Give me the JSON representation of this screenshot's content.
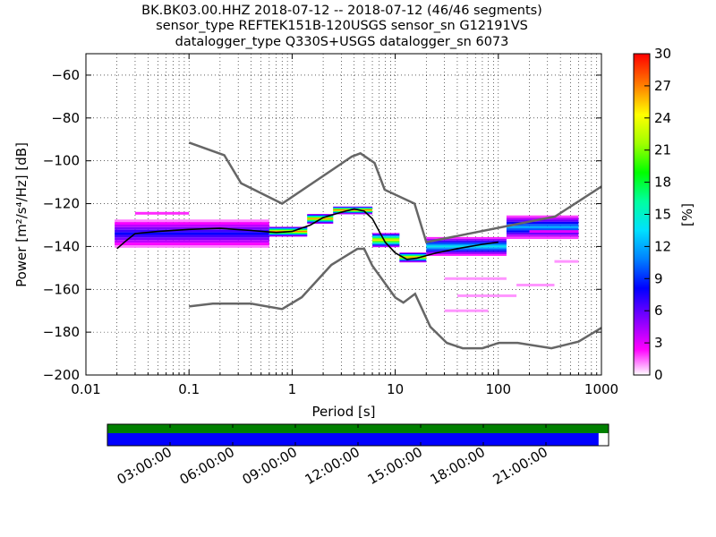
{
  "chart_data": {
    "type": "heatmap",
    "title_lines": [
      "BK.BK03.00.HHZ   2018-07-12 -- 2018-07-12  (46/46 segments)",
      "sensor_type REFTEK151B-120USGS sensor_sn G12191VS",
      "datalogger_type Q330S+USGS datalogger_sn 6073"
    ],
    "xlabel": "Period [s]",
    "ylabel": "Power [m²/s⁴/Hz] [dB]",
    "x_scale": "log",
    "xlim": [
      0.01,
      1000
    ],
    "ylim": [
      -200,
      -50
    ],
    "x_ticks": [
      {
        "value": 0.01,
        "label": "0.01"
      },
      {
        "value": 0.1,
        "label": "0.1"
      },
      {
        "value": 1,
        "label": "1"
      },
      {
        "value": 10,
        "label": "10"
      },
      {
        "value": 100,
        "label": "100"
      },
      {
        "value": 1000,
        "label": "1000"
      }
    ],
    "y_ticks": [
      {
        "value": -60,
        "label": "−60"
      },
      {
        "value": -80,
        "label": "−80"
      },
      {
        "value": -100,
        "label": "−100"
      },
      {
        "value": -120,
        "label": "−120"
      },
      {
        "value": -140,
        "label": "−140"
      },
      {
        "value": -160,
        "label": "−160"
      },
      {
        "value": -180,
        "label": "−180"
      },
      {
        "value": -200,
        "label": "−200"
      }
    ],
    "grid": "dotted",
    "colorbar": {
      "label": "[%]",
      "min": 0,
      "max": 30,
      "ticks": [
        "0",
        "3",
        "6",
        "9",
        "12",
        "15",
        "18",
        "21",
        "24",
        "27",
        "30"
      ]
    },
    "series": [
      {
        "name": "NHNM",
        "color": "#666666",
        "points": [
          [
            0.1,
            -91.5
          ],
          [
            0.22,
            -97.4
          ],
          [
            0.32,
            -110.5
          ],
          [
            0.8,
            -120
          ],
          [
            3.8,
            -98
          ],
          [
            4.6,
            -96.5
          ],
          [
            6.3,
            -101
          ],
          [
            7.9,
            -113.5
          ],
          [
            15.4,
            -120
          ],
          [
            20,
            -138
          ],
          [
            354.8,
            -126
          ],
          [
            1000,
            -112
          ]
        ]
      },
      {
        "name": "NLNM",
        "color": "#666666",
        "points": [
          [
            0.1,
            -168
          ],
          [
            0.17,
            -166.7
          ],
          [
            0.4,
            -166.7
          ],
          [
            0.8,
            -169.2
          ],
          [
            1.24,
            -163.7
          ],
          [
            2.4,
            -148.6
          ],
          [
            4.3,
            -141.1
          ],
          [
            5,
            -141.1
          ],
          [
            6,
            -149
          ],
          [
            10,
            -163.8
          ],
          [
            12,
            -166.2
          ],
          [
            15.6,
            -162.1
          ],
          [
            21.9,
            -177.5
          ],
          [
            31.6,
            -185
          ],
          [
            45,
            -187.5
          ],
          [
            70,
            -187.5
          ],
          [
            101,
            -185
          ],
          [
            154,
            -185
          ],
          [
            328,
            -187.5
          ],
          [
            600,
            -184.4
          ],
          [
            1000,
            -178
          ]
        ]
      },
      {
        "name": "mode",
        "color": "#000000",
        "points": [
          [
            0.02,
            -141
          ],
          [
            0.025,
            -137
          ],
          [
            0.03,
            -134
          ],
          [
            0.05,
            -133
          ],
          [
            0.1,
            -132
          ],
          [
            0.2,
            -131.5
          ],
          [
            0.4,
            -132.5
          ],
          [
            0.7,
            -133.5
          ],
          [
            1.0,
            -133
          ],
          [
            1.5,
            -130
          ],
          [
            2.0,
            -126.5
          ],
          [
            3.0,
            -124
          ],
          [
            4.0,
            -122.5
          ],
          [
            5.0,
            -123.5
          ],
          [
            6.0,
            -127
          ],
          [
            7.0,
            -133
          ],
          [
            8.0,
            -138
          ],
          [
            10,
            -143
          ],
          [
            13,
            -146
          ],
          [
            16,
            -145.5
          ],
          [
            25,
            -143
          ],
          [
            40,
            -141
          ],
          [
            70,
            -139
          ],
          [
            100,
            -138
          ]
        ]
      }
    ],
    "density_bands": [
      {
        "x": [
          0.019,
          0.6
        ],
        "y_center": -134,
        "spread": 6,
        "level": 8
      },
      {
        "x": [
          0.6,
          1.4
        ],
        "y_center": -133,
        "spread": 2,
        "level": 28
      },
      {
        "x": [
          1.4,
          2.5
        ],
        "y_center": -127,
        "spread": 2,
        "level": 27
      },
      {
        "x": [
          2.5,
          6.0
        ],
        "y_center": -123,
        "spread": 1.5,
        "level": 29
      },
      {
        "x": [
          6.0,
          11
        ],
        "y_center": -137,
        "spread": 3,
        "level": 25
      },
      {
        "x": [
          11,
          20
        ],
        "y_center": -145,
        "spread": 2,
        "level": 26
      },
      {
        "x": [
          20,
          120
        ],
        "y_center": -140,
        "spread": 4,
        "level": 14
      },
      {
        "x": [
          120,
          600
        ],
        "y_center": -131,
        "spread": 5,
        "level": 12
      }
    ],
    "outliers": [
      {
        "x": [
          0.03,
          0.1
        ],
        "y": -124.5,
        "level": 2
      },
      {
        "x": [
          30,
          120
        ],
        "y": -155,
        "level": 1
      },
      {
        "x": [
          40,
          150
        ],
        "y": -163,
        "level": 1
      },
      {
        "x": [
          30,
          80
        ],
        "y": -170,
        "level": 1
      },
      {
        "x": [
          150,
          350
        ],
        "y": -158,
        "level": 1
      },
      {
        "x": [
          350,
          600
        ],
        "y": -147,
        "level": 1
      },
      {
        "x": [
          200,
          600
        ],
        "y": -133,
        "level": 3
      }
    ]
  },
  "timeline": {
    "start": "2018-07-12 00:00:00",
    "end": "2018-07-13 00:00:00",
    "data_coverage": [
      0.0,
      1.0
    ],
    "psd_coverage": [
      0.0,
      0.98
    ],
    "data_color": "#008000",
    "psd_color": "#0000ff",
    "ticks": [
      "03:00:00",
      "06:00:00",
      "09:00:00",
      "12:00:00",
      "15:00:00",
      "18:00:00",
      "21:00:00"
    ]
  }
}
